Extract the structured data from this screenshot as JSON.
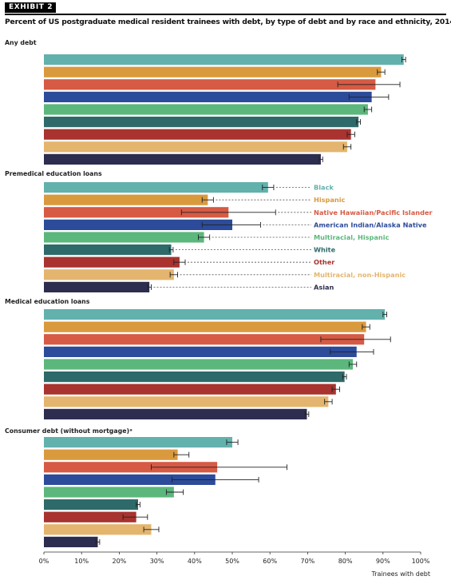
{
  "exhibit": {
    "label": "EXHIBIT 2"
  },
  "title": "Percent of US postgraduate medical resident trainees with debt, by type of debt and by race and ethnicity, 2014–19",
  "chart_data": {
    "type": "bar",
    "orientation": "horizontal",
    "xlabel": "Trainees with debt",
    "xlim": [
      0,
      100
    ],
    "xticks": [
      "0%",
      "10%",
      "20%",
      "30%",
      "40%",
      "50%",
      "60%",
      "70%",
      "80%",
      "90%",
      "100%"
    ],
    "grid": false,
    "legend": "inline labels beside Premedical education loans panel",
    "series": [
      {
        "name": "Black",
        "color": "#62b1ad"
      },
      {
        "name": "Hispanic",
        "color": "#d99a3e"
      },
      {
        "name": "Native Hawaiian/Pacific Islander",
        "color": "#d65a44"
      },
      {
        "name": "American Indian/Alaska Native",
        "color": "#2c4b9a"
      },
      {
        "name": "Multiracial, Hispanic",
        "color": "#5cb77c"
      },
      {
        "name": "White",
        "color": "#2f6a6a"
      },
      {
        "name": "Other",
        "color": "#a8332f"
      },
      {
        "name": "Multiracial, non-Hispanic",
        "color": "#e4b56e"
      },
      {
        "name": "Asian",
        "color": "#2d2d4f"
      }
    ],
    "panels": [
      {
        "title": "Any debt",
        "values": [
          95.5,
          89.5,
          88.0,
          87.0,
          86.0,
          83.5,
          81.5,
          80.5,
          73.5
        ],
        "err_low": [
          95.0,
          88.5,
          78.0,
          81.0,
          85.0,
          83.0,
          80.5,
          79.5,
          73.0
        ],
        "err_high": [
          96.0,
          90.5,
          94.5,
          91.5,
          87.0,
          84.0,
          82.5,
          81.5,
          74.0
        ]
      },
      {
        "title": "Premedical education loans",
        "values": [
          59.5,
          43.5,
          49.0,
          50.0,
          42.5,
          33.8,
          36.0,
          34.5,
          28.0
        ],
        "err_low": [
          58.0,
          42.0,
          36.5,
          42.0,
          41.0,
          33.3,
          34.5,
          33.5,
          27.5
        ],
        "err_high": [
          61.0,
          45.0,
          61.5,
          57.5,
          44.0,
          34.3,
          37.5,
          35.5,
          28.5
        ]
      },
      {
        "title": "Medical education loans",
        "values": [
          90.5,
          85.5,
          85.0,
          83.0,
          82.0,
          79.8,
          77.5,
          75.5,
          69.8
        ],
        "err_low": [
          90.0,
          84.5,
          73.5,
          76.0,
          81.0,
          79.3,
          76.5,
          74.5,
          69.3
        ],
        "err_high": [
          91.0,
          86.5,
          92.0,
          87.5,
          83.0,
          80.3,
          78.5,
          76.5,
          70.3
        ]
      },
      {
        "title": "Consumer debt (without mortgage)ᵃ",
        "values": [
          50.0,
          35.5,
          46.0,
          45.5,
          34.5,
          25.0,
          24.5,
          28.5,
          14.3
        ],
        "err_low": [
          48.5,
          34.5,
          28.5,
          34.0,
          32.5,
          24.5,
          21.0,
          26.5,
          13.8
        ],
        "err_high": [
          51.5,
          38.5,
          64.5,
          57.0,
          37.0,
          25.5,
          27.5,
          30.5,
          14.8
        ]
      }
    ]
  }
}
